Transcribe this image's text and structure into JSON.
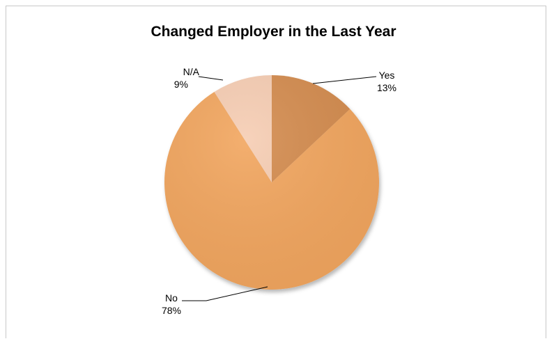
{
  "chart_data": {
    "type": "pie",
    "title": "Changed Employer in the Last Year",
    "categories": [
      "Yes",
      "No",
      "N/A"
    ],
    "values": [
      13,
      78,
      9
    ],
    "value_labels": [
      "13%",
      "78%",
      "9%"
    ],
    "colors": [
      "#d48c4f",
      "#f2a65e",
      "#f6cdb3"
    ],
    "start_angle_deg": 0,
    "direction": "clockwise",
    "legend": "none"
  }
}
